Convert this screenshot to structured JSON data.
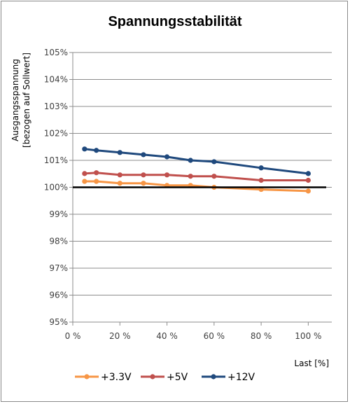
{
  "chart_data": {
    "type": "line",
    "title": "Spannungsstabilität",
    "ylabel": [
      "Ausgangsspannung",
      "[bezogen auf Sollwert]"
    ],
    "xlabel": "Last [%]",
    "xlim": [
      0,
      110
    ],
    "ylim": [
      95,
      105
    ],
    "x_ticks": [
      0,
      20,
      40,
      60,
      80,
      100
    ],
    "x_tick_labels": [
      "0 %",
      "20 %",
      "40 %",
      "60 %",
      "80 %",
      "100 %"
    ],
    "y_ticks": [
      95,
      96,
      97,
      98,
      99,
      100,
      101,
      102,
      103,
      104,
      105
    ],
    "y_tick_labels": [
      "95%",
      "96%",
      "97%",
      "98%",
      "99%",
      "100%",
      "101%",
      "102%",
      "103%",
      "104%",
      "105%"
    ],
    "grid": "horizontal",
    "legend_position": "bottom",
    "reference_line": {
      "y": 100,
      "color": "#000000"
    },
    "series": [
      {
        "name": "+3.3V",
        "color": "#f79646",
        "x": [
          5,
          10,
          20,
          30,
          40,
          50,
          60,
          80,
          100
        ],
        "y": [
          100.22,
          100.22,
          100.15,
          100.15,
          100.07,
          100.07,
          100.0,
          99.92,
          99.86
        ]
      },
      {
        "name": "+5V",
        "color": "#c0504d",
        "x": [
          5,
          10,
          20,
          30,
          40,
          50,
          60,
          80,
          100
        ],
        "y": [
          100.51,
          100.54,
          100.46,
          100.46,
          100.46,
          100.41,
          100.41,
          100.26,
          100.26
        ]
      },
      {
        "name": "+12V",
        "color": "#1f497d",
        "x": [
          5,
          10,
          20,
          30,
          40,
          50,
          60,
          80,
          100
        ],
        "y": [
          101.42,
          101.37,
          101.29,
          101.21,
          101.13,
          101.0,
          100.95,
          100.72,
          100.51
        ]
      }
    ]
  }
}
